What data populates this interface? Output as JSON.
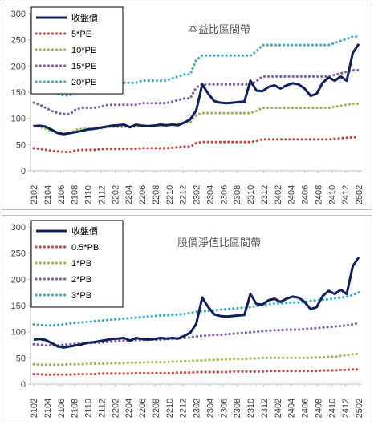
{
  "chart_data": [
    {
      "type": "line",
      "title": "本益比區間帶",
      "ylim": [
        0,
        300
      ],
      "yticks": [
        0,
        50,
        100,
        150,
        200,
        250,
        300
      ],
      "grid": false,
      "legend_position": "top-left",
      "x_ticks": [
        "2102",
        "2104",
        "2106",
        "2108",
        "2110",
        "2112",
        "2202",
        "2204",
        "2206",
        "2208",
        "2210",
        "2212",
        "2302",
        "2304",
        "2306",
        "2308",
        "2310",
        "2312",
        "2402",
        "2404",
        "2406",
        "2408",
        "2410",
        "2412",
        "2502"
      ],
      "series": [
        {
          "name": "收盤價",
          "color": "#0d1f5c",
          "style": "solid",
          "values": [
            85,
            86,
            84,
            78,
            72,
            70,
            72,
            74,
            76,
            79,
            80,
            82,
            84,
            86,
            87,
            88,
            83,
            88,
            86,
            85,
            86,
            88,
            87,
            88,
            87,
            92,
            98,
            115,
            165,
            147,
            133,
            130,
            129,
            130,
            131,
            132,
            172,
            153,
            152,
            160,
            163,
            157,
            163,
            167,
            165,
            157,
            143,
            147,
            168,
            178,
            172,
            180,
            172,
            225,
            242
          ]
        },
        {
          "name": "5*PE",
          "color": "#c0504d",
          "style": "dotted",
          "values": [
            43,
            42,
            40,
            38,
            37,
            36,
            36,
            39,
            40,
            40,
            40,
            41,
            42,
            42,
            42,
            42,
            42,
            42,
            43,
            43,
            43,
            43,
            43,
            44,
            45,
            46,
            46,
            53,
            55,
            55,
            55,
            55,
            55,
            55,
            55,
            55,
            55,
            57,
            60,
            60,
            60,
            60,
            60,
            60,
            60,
            60,
            60,
            60,
            60,
            60,
            61,
            62,
            63,
            64,
            64
          ]
        },
        {
          "name": "10*PE",
          "color": "#9bbb59",
          "style": "dotted",
          "values": [
            86,
            84,
            80,
            76,
            73,
            72,
            72,
            78,
            80,
            80,
            80,
            81,
            83,
            84,
            84,
            84,
            84,
            84,
            86,
            86,
            86,
            86,
            86,
            88,
            90,
            92,
            92,
            106,
            110,
            110,
            110,
            110,
            110,
            110,
            110,
            110,
            110,
            114,
            120,
            120,
            120,
            120,
            120,
            120,
            120,
            120,
            120,
            120,
            120,
            120,
            122,
            124,
            126,
            128,
            128
          ]
        },
        {
          "name": "15*PE",
          "color": "#8064a2",
          "style": "dotted",
          "values": [
            130,
            126,
            120,
            114,
            110,
            108,
            108,
            117,
            120,
            120,
            120,
            122,
            125,
            126,
            126,
            126,
            126,
            126,
            129,
            129,
            129,
            129,
            129,
            132,
            135,
            138,
            138,
            159,
            165,
            165,
            165,
            165,
            165,
            165,
            165,
            165,
            165,
            171,
            180,
            180,
            180,
            180,
            180,
            180,
            180,
            180,
            180,
            180,
            180,
            180,
            183,
            186,
            189,
            192,
            192
          ]
        },
        {
          "name": "20*PE",
          "color": "#4bacc6",
          "style": "dotted",
          "values": [
            173,
            168,
            160,
            152,
            147,
            144,
            144,
            156,
            160,
            160,
            160,
            163,
            167,
            168,
            168,
            168,
            168,
            168,
            172,
            172,
            172,
            172,
            172,
            176,
            180,
            184,
            184,
            212,
            220,
            220,
            220,
            220,
            220,
            220,
            220,
            220,
            220,
            228,
            240,
            240,
            240,
            240,
            240,
            240,
            240,
            240,
            240,
            240,
            240,
            240,
            244,
            248,
            252,
            256,
            256
          ]
        }
      ]
    },
    {
      "type": "line",
      "title": "股價淨值比區間帶",
      "ylim": [
        0,
        300
      ],
      "yticks": [
        0,
        50,
        100,
        150,
        200,
        250,
        300
      ],
      "grid": false,
      "legend_position": "top-left",
      "x_ticks": [
        "2102",
        "2104",
        "2106",
        "2108",
        "2110",
        "2112",
        "2202",
        "2204",
        "2206",
        "2208",
        "2210",
        "2212",
        "2302",
        "2304",
        "2306",
        "2308",
        "2310",
        "2312",
        "2402",
        "2404",
        "2406",
        "2408",
        "2410",
        "2412",
        "2502"
      ],
      "series": [
        {
          "name": "收盤價",
          "color": "#0d1f5c",
          "style": "solid",
          "values": [
            85,
            86,
            84,
            78,
            72,
            70,
            72,
            74,
            76,
            79,
            80,
            82,
            84,
            86,
            87,
            88,
            83,
            88,
            86,
            85,
            86,
            88,
            87,
            88,
            87,
            92,
            98,
            115,
            165,
            147,
            133,
            130,
            129,
            130,
            131,
            132,
            172,
            153,
            152,
            160,
            163,
            157,
            163,
            167,
            165,
            157,
            143,
            147,
            168,
            178,
            172,
            180,
            172,
            225,
            242
          ]
        },
        {
          "name": "0.5*PB",
          "color": "#c0504d",
          "style": "dotted",
          "values": [
            19,
            19,
            18,
            18,
            18,
            18,
            18,
            19,
            19,
            19,
            19,
            20,
            20,
            20,
            20,
            20,
            20,
            21,
            21,
            21,
            21,
            21,
            21,
            21,
            22,
            22,
            22,
            23,
            23,
            23,
            23,
            23,
            23,
            24,
            24,
            24,
            24,
            24,
            24,
            25,
            25,
            25,
            25,
            25,
            25,
            25,
            25,
            25,
            26,
            26,
            26,
            27,
            27,
            28,
            28
          ]
        },
        {
          "name": "1*PB",
          "color": "#9bbb59",
          "style": "dotted",
          "values": [
            38,
            37,
            37,
            37,
            37,
            37,
            38,
            38,
            38,
            39,
            39,
            39,
            39,
            40,
            40,
            40,
            41,
            41,
            41,
            42,
            42,
            42,
            42,
            43,
            43,
            44,
            44,
            45,
            45,
            46,
            46,
            47,
            47,
            48,
            48,
            48,
            49,
            49,
            50,
            50,
            50,
            50,
            50,
            50,
            50,
            50,
            50,
            51,
            51,
            52,
            52,
            54,
            55,
            57,
            58
          ]
        },
        {
          "name": "2*PB",
          "color": "#8064a2",
          "style": "dotted",
          "values": [
            76,
            75,
            74,
            74,
            74,
            75,
            76,
            77,
            78,
            78,
            79,
            79,
            80,
            81,
            82,
            83,
            83,
            84,
            84,
            85,
            85,
            85,
            86,
            86,
            87,
            88,
            89,
            91,
            92,
            93,
            94,
            94,
            95,
            96,
            97,
            98,
            99,
            100,
            101,
            102,
            103,
            103,
            104,
            104,
            104,
            105,
            106,
            107,
            108,
            109,
            110,
            111,
            112,
            114,
            117
          ]
        },
        {
          "name": "3*PB",
          "color": "#4bacc6",
          "style": "dotted",
          "values": [
            114,
            113,
            112,
            112,
            113,
            114,
            116,
            117,
            118,
            119,
            120,
            121,
            122,
            123,
            124,
            125,
            126,
            127,
            128,
            129,
            130,
            131,
            131,
            132,
            133,
            134,
            136,
            138,
            139,
            140,
            141,
            142,
            143,
            144,
            145,
            146,
            147,
            149,
            151,
            152,
            154,
            154,
            155,
            156,
            156,
            157,
            159,
            160,
            161,
            162,
            164,
            165,
            167,
            170,
            175
          ]
        }
      ]
    }
  ]
}
